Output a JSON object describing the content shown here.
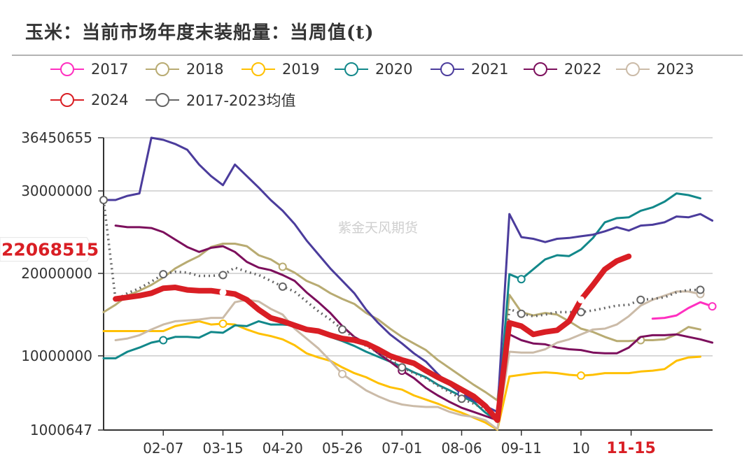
{
  "title": "玉米：当前市场年度末装船量：当周值(t)",
  "watermark": "紫金天风期货",
  "chart_data": {
    "type": "line",
    "title": "玉米：当前市场年度末装船量：当周值(t)",
    "unit": "t",
    "ylim": [
      1000647,
      36450655
    ],
    "y_tick_labels": [
      "36450655",
      "30000000",
      "20000000",
      "10000000",
      "1000647"
    ],
    "y_ticks": [
      36450655,
      30000000,
      20000000,
      10000000,
      1000647
    ],
    "x_tick_labels": [
      "02-07",
      "03-15",
      "04-20",
      "05-26",
      "07-01",
      "08-06",
      "09-11",
      "10",
      "11-15"
    ],
    "highlight_x_label": "11-15",
    "current_value_label": "22068515",
    "grid": true,
    "legend_position": "top",
    "series": [
      {
        "name": "2017",
        "color": "#FF2FC0",
        "values": [
          null,
          null,
          null,
          null,
          null,
          null,
          null,
          null,
          null,
          null,
          null,
          null,
          null,
          null,
          null,
          null,
          null,
          null,
          null,
          null,
          null,
          null,
          null,
          null,
          null,
          null,
          null,
          null,
          null,
          null,
          null,
          null,
          null,
          null,
          null,
          null,
          null,
          null,
          null,
          null,
          null,
          null,
          null,
          null,
          null,
          null,
          14500000,
          14600000,
          14900000,
          15800000,
          16500000,
          16000000
        ]
      },
      {
        "name": "2018",
        "color": "#B8AB72",
        "values": [
          15300000,
          16200000,
          17300000,
          17900000,
          18600000,
          19500000,
          20600000,
          21400000,
          22100000,
          23200000,
          23600000,
          23600000,
          23300000,
          22200000,
          21700000,
          20800000,
          20100000,
          19100000,
          18500000,
          17600000,
          16900000,
          16300000,
          15200000,
          14400000,
          13300000,
          12300000,
          11500000,
          10700000,
          9500000,
          8500000,
          7500000,
          6500000,
          5600000,
          4600000,
          17400000,
          15300000,
          14900000,
          15200000,
          15000000,
          14200000,
          13300000,
          12900000,
          12300000,
          11800000,
          11800000,
          11900000,
          11900000,
          12000000,
          12600000,
          13500000,
          13200000,
          null
        ]
      },
      {
        "name": "2019",
        "color": "#FFC000",
        "values": [
          13000000,
          13000000,
          13000000,
          13000000,
          13000000,
          13000000,
          13600000,
          13900000,
          14200000,
          13800000,
          13900000,
          13800000,
          13200000,
          12700000,
          12400000,
          12000000,
          11300000,
          10300000,
          9800000,
          9400000,
          8600000,
          7900000,
          7400000,
          6700000,
          6200000,
          5900000,
          5200000,
          4700000,
          4200000,
          3600000,
          3100000,
          2500000,
          1900000,
          1050000,
          7500000,
          7700000,
          7900000,
          8000000,
          7900000,
          7700000,
          7600000,
          7700000,
          7900000,
          7900000,
          7900000,
          8100000,
          8200000,
          8400000,
          9400000,
          9800000,
          9900000,
          null
        ]
      },
      {
        "name": "2020",
        "color": "#12888A",
        "values": [
          9700000,
          9700000,
          10500000,
          11000000,
          11600000,
          11900000,
          12300000,
          12300000,
          12200000,
          12900000,
          12800000,
          13700000,
          13600000,
          14200000,
          13800000,
          13800000,
          13700000,
          13300000,
          12900000,
          12300000,
          11800000,
          11200000,
          10500000,
          9900000,
          9300000,
          8700000,
          8000000,
          7400000,
          6500000,
          5800000,
          5100000,
          4400000,
          3100000,
          2100000,
          19900000,
          19300000,
          20500000,
          21700000,
          22200000,
          22100000,
          22900000,
          24300000,
          26200000,
          26700000,
          26800000,
          27600000,
          28000000,
          28700000,
          29700000,
          29500000,
          29100000,
          null
        ]
      },
      {
        "name": "2021",
        "color": "#4B3C9C",
        "values": [
          28900000,
          28900000,
          29400000,
          29700000,
          36450655,
          36200000,
          35700000,
          35000000,
          33200000,
          31800000,
          30700000,
          33200000,
          31800000,
          30400000,
          28900000,
          27600000,
          26000000,
          24000000,
          22300000,
          20600000,
          19100000,
          17600000,
          15600000,
          14000000,
          12600000,
          11500000,
          10300000,
          9300000,
          7800000,
          6500000,
          5400000,
          4600000,
          3900000,
          3200000,
          27200000,
          24400000,
          24200000,
          23800000,
          24200000,
          24300000,
          24500000,
          24700000,
          25100000,
          25600000,
          25200000,
          25800000,
          25900000,
          26200000,
          26900000,
          26800000,
          27200000,
          26400000
        ]
      },
      {
        "name": "2022",
        "color": "#7C0F5C",
        "values": [
          null,
          25800000,
          25600000,
          25600000,
          25500000,
          25000000,
          24100000,
          23200000,
          22600000,
          23100000,
          23300000,
          22600000,
          21400000,
          20700000,
          20400000,
          19800000,
          19100000,
          17700000,
          16500000,
          15200000,
          13600000,
          12300000,
          11500000,
          10300000,
          9300000,
          8200000,
          7300000,
          6100000,
          5200000,
          4400000,
          3700000,
          3200000,
          2700000,
          2200000,
          12600000,
          11900000,
          11500000,
          11400000,
          11000000,
          10800000,
          10700000,
          10400000,
          10300000,
          10300000,
          11000000,
          12300000,
          12500000,
          12500000,
          12600000,
          12300000,
          12000000,
          11600000
        ]
      },
      {
        "name": "2023",
        "color": "#CBBBA8",
        "values": [
          null,
          11900000,
          12100000,
          12500000,
          13200000,
          13800000,
          14200000,
          14300000,
          14400000,
          14600000,
          14600000,
          16500000,
          16800000,
          16600000,
          15700000,
          15000000,
          13300000,
          12100000,
          10900000,
          9400000,
          7800000,
          6800000,
          5800000,
          5100000,
          4500000,
          4100000,
          3900000,
          3800000,
          3800000,
          3200000,
          2800000,
          2600000,
          2200000,
          1100000,
          10500000,
          10400000,
          10400000,
          10800000,
          11600000,
          12000000,
          12600000,
          13200000,
          13300000,
          13800000,
          14800000,
          16100000,
          16800000,
          17300000,
          17800000,
          17800000,
          17500000,
          null
        ]
      },
      {
        "name": "2024",
        "color": "#D91E24",
        "values": [
          null,
          16900000,
          17100000,
          17300000,
          17600000,
          18200000,
          18300000,
          18000000,
          17900000,
          17900000,
          17700000,
          17500000,
          16800000,
          15600000,
          14600000,
          14200000,
          13700000,
          13200000,
          13000000,
          12500000,
          12100000,
          11900000,
          11500000,
          10800000,
          10000000,
          9500000,
          9100000,
          8200000,
          7400000,
          6700000,
          5900000,
          5100000,
          3900000,
          2200000,
          14000000,
          13600000,
          12600000,
          12900000,
          13100000,
          14200000,
          16800000,
          18600000,
          20500000,
          21500000,
          22068515,
          null,
          null,
          null,
          null,
          null,
          null,
          null
        ]
      },
      {
        "name": "2017-2023均值",
        "color": "#666666",
        "dotted": true,
        "values": [
          28900000,
          16800000,
          17600000,
          18200000,
          19000000,
          19900000,
          20200000,
          20100000,
          19700000,
          19700000,
          19800000,
          20700000,
          20200000,
          19800000,
          19100000,
          18400000,
          17800000,
          16600000,
          15400000,
          14400000,
          13200000,
          12200000,
          11200000,
          10400000,
          9600000,
          8600000,
          7900000,
          7300000,
          6400000,
          5600000,
          4800000,
          4200000,
          3500000,
          2500000,
          15700000,
          15100000,
          14800000,
          15000000,
          15300000,
          15300000,
          15300000,
          15500000,
          15800000,
          16100000,
          16200000,
          16800000,
          16900000,
          17100000,
          17700000,
          18000000,
          18000000,
          null
        ]
      }
    ]
  }
}
